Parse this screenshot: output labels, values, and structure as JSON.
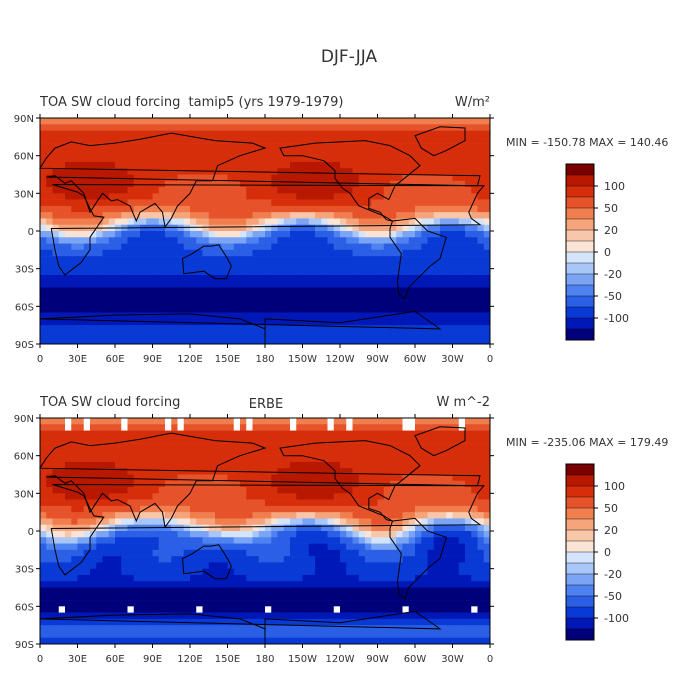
{
  "page": {
    "title": "DJF-JJA"
  },
  "chart_data": [
    {
      "type": "heatmap",
      "title_left": "TOA SW cloud forcing",
      "title_center": "tamip5 (yrs 1979-1979)",
      "units": "W/m²",
      "min_label": "MIN = -150.78",
      "max_label": "MAX = 140.46",
      "min": -150.78,
      "max": 140.46,
      "lat_ticks": [
        "90N",
        "60N",
        "30N",
        "0",
        "30S",
        "60S",
        "90S"
      ],
      "lon_ticks": [
        "0",
        "30E",
        "60E",
        "90E",
        "120E",
        "150E",
        "180",
        "150W",
        "120W",
        "90W",
        "60W",
        "30W",
        "0"
      ],
      "colorbar_labels": [
        "100",
        "50",
        "20",
        "0",
        "-20",
        "-50",
        "-100"
      ],
      "colorbar_levels": [
        -150,
        -120,
        -100,
        -75,
        -50,
        -35,
        -20,
        -10,
        0,
        10,
        20,
        35,
        50,
        75,
        100,
        120,
        150
      ]
    },
    {
      "type": "heatmap",
      "title_left": "TOA SW cloud forcing",
      "title_center": "ERBE",
      "units": "W m^-2",
      "min_label": "MIN = -235.06",
      "max_label": "MAX = 179.49",
      "min": -235.06,
      "max": 179.49,
      "lat_ticks": [
        "90N",
        "60N",
        "30N",
        "0",
        "30S",
        "60S",
        "90S"
      ],
      "lon_ticks": [
        "0",
        "30E",
        "60E",
        "90E",
        "120E",
        "150E",
        "180",
        "150W",
        "120W",
        "90W",
        "60W",
        "30W",
        "0"
      ],
      "colorbar_labels": [
        "100",
        "50",
        "20",
        "0",
        "-20",
        "-50",
        "-100"
      ],
      "colorbar_levels": [
        -150,
        -120,
        -100,
        -75,
        -50,
        -35,
        -20,
        -10,
        0,
        10,
        20,
        35,
        50,
        75,
        100,
        120,
        150
      ]
    }
  ],
  "colors": {
    "palette": [
      "#00007a",
      "#0018b8",
      "#0a3ad6",
      "#2a5fe6",
      "#4e82f0",
      "#7ba4f5",
      "#a9c6f8",
      "#d4e4fb",
      "#fbe3d6",
      "#f8c6a9",
      "#f5a47b",
      "#f07e4e",
      "#e6532a",
      "#d62e0a",
      "#b81800",
      "#7a0000"
    ],
    "land_outline": "#000000",
    "missing": "#ffffff"
  }
}
